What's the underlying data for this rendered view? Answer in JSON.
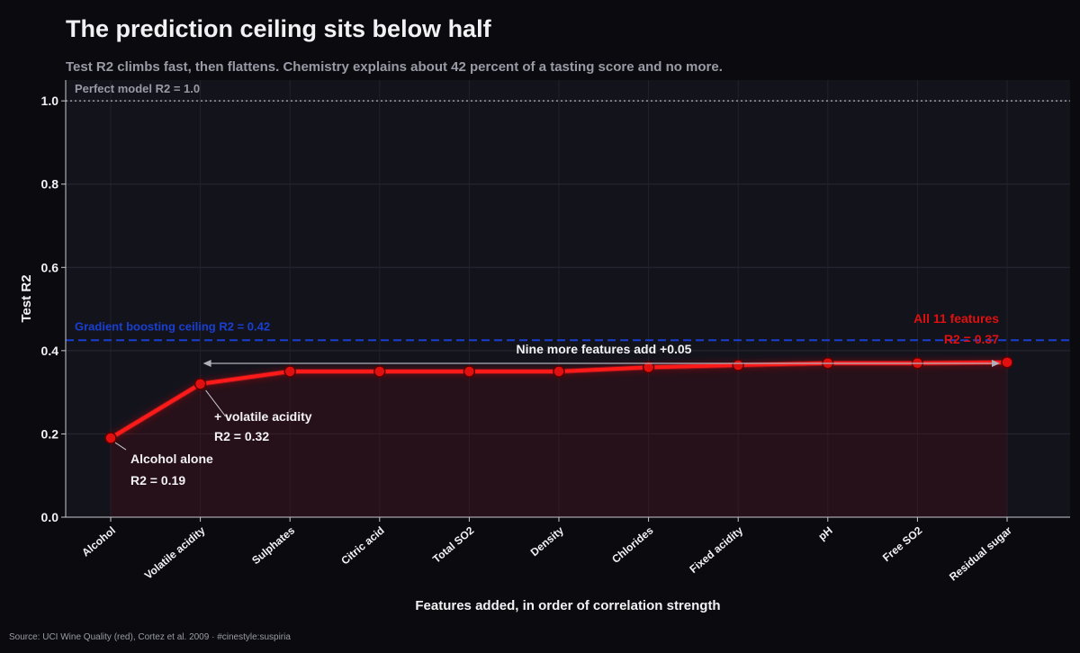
{
  "chart_data": {
    "type": "line",
    "title": "The prediction ceiling sits below half",
    "subtitle": "Test R2 climbs fast, then flattens. Chemistry explains about 42 percent of a tasting score and no more.",
    "xlabel": "Features added, in order of correlation strength",
    "ylabel": "Test R2",
    "ylim": [
      0,
      1.05
    ],
    "yticks": [
      "0.0",
      "0.2",
      "0.4",
      "0.6",
      "0.8",
      "1.0"
    ],
    "grid": true,
    "categories": [
      "Alcohol",
      "Volatile acidity",
      "Sulphates",
      "Citric acid",
      "Total SO2",
      "Density",
      "Chlorides",
      "Fixed acidity",
      "pH",
      "Free SO2",
      "Residual sugar"
    ],
    "series": [
      {
        "values": [
          0.19,
          0.32,
          0.35,
          0.35,
          0.35,
          0.35,
          0.36,
          0.365,
          0.37,
          0.37,
          0.372
        ]
      }
    ],
    "reference_lines": [
      {
        "label": "Perfect model  R2 = 1.0",
        "value": 1.0,
        "color": "#9a9aa6",
        "style": "dotted"
      },
      {
        "label": "Gradient boosting ceiling  R2 = 0.42",
        "value": 0.425,
        "color": "#1a3fd0",
        "style": "dashed"
      }
    ],
    "annotations": {
      "first": {
        "line1": "Alcohol alone",
        "line2": "R2 = 0.19"
      },
      "second": {
        "line1": "+ volatile acidity",
        "line2": "R2 = 0.32"
      },
      "span": {
        "label": "Nine more features add +0.05"
      },
      "last": {
        "line1": "All 11 features",
        "line2": "R2 = 0.37"
      }
    },
    "source": "Source: UCI Wine Quality (red), Cortez et al. 2009  ·  #cinestyle:suspiria",
    "colors": {
      "background": "#0b0b0f",
      "panel": "#13131c",
      "line": "#ff1a1a",
      "accent_red": "#e01010",
      "ceiling_blue": "#1a3fd0",
      "text": "#e8e8ec",
      "muted": "#9a9aa6"
    }
  }
}
